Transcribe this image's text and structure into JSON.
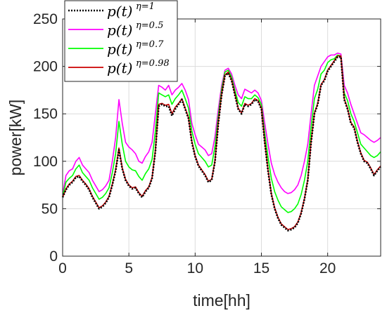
{
  "chart_data": {
    "type": "line",
    "title": "",
    "xlabel": "time[hh]",
    "ylabel": "power[kW]",
    "xlim": [
      0,
      24
    ],
    "ylim": [
      0,
      250
    ],
    "xticks": [
      0,
      5,
      10,
      15,
      20
    ],
    "yticks": [
      0,
      50,
      100,
      150,
      200,
      250
    ],
    "grid": true,
    "legend": {
      "placement": "top-left",
      "entries": [
        {
          "base": "p(t)",
          "sup": "η=1"
        },
        {
          "base": "p(t)",
          "sup": "η=0.5"
        },
        {
          "base": "p(t)",
          "sup": "η=0.7"
        },
        {
          "base": "p(t)",
          "sup": "η=0.98"
        }
      ]
    },
    "x": [
      0,
      0.25,
      0.5,
      0.75,
      1,
      1.25,
      1.5,
      1.75,
      2,
      2.25,
      2.5,
      2.75,
      3,
      3.25,
      3.5,
      3.75,
      4,
      4.25,
      4.5,
      4.75,
      5,
      5.25,
      5.5,
      5.75,
      6,
      6.25,
      6.5,
      6.75,
      7,
      7.25,
      7.5,
      7.75,
      8,
      8.25,
      8.5,
      8.75,
      9,
      9.25,
      9.5,
      9.75,
      10,
      10.25,
      10.5,
      10.75,
      11,
      11.25,
      11.5,
      11.75,
      12,
      12.25,
      12.5,
      12.75,
      13,
      13.25,
      13.5,
      13.75,
      14,
      14.25,
      14.5,
      14.75,
      15,
      15.25,
      15.5,
      15.75,
      16,
      16.25,
      16.5,
      16.75,
      17,
      17.25,
      17.5,
      17.75,
      18,
      18.25,
      18.5,
      18.75,
      19,
      19.25,
      19.5,
      19.75,
      20,
      20.25,
      20.5,
      20.75,
      21,
      21.25,
      21.5,
      21.75,
      22,
      22.25,
      22.5,
      22.75,
      23,
      23.25,
      23.5,
      23.75,
      24
    ],
    "series": [
      {
        "legend_index": 0,
        "color": "#000000",
        "dash": "2,2",
        "values": [
          62,
          70,
          75,
          78,
          83,
          84,
          79,
          75,
          70,
          62,
          56,
          50,
          52,
          56,
          62,
          75,
          90,
          112,
          92,
          80,
          74,
          71,
          72,
          66,
          62,
          68,
          72,
          82,
          110,
          158,
          160,
          158,
          158,
          148,
          155,
          160,
          165,
          155,
          145,
          120,
          105,
          95,
          90,
          85,
          78,
          80,
          100,
          140,
          170,
          190,
          193,
          185,
          170,
          155,
          150,
          160,
          158,
          160,
          165,
          163,
          155,
          120,
          90,
          65,
          50,
          40,
          33,
          30,
          27,
          28,
          30,
          35,
          45,
          60,
          80,
          120,
          150,
          160,
          180,
          185,
          195,
          200,
          205,
          210,
          210,
          165,
          155,
          140,
          135,
          120,
          108,
          100,
          98,
          92,
          85,
          90,
          94
        ]
      },
      {
        "legend_index": 1,
        "color": "#ff00ff",
        "dash": "",
        "values": [
          65,
          85,
          90,
          92,
          100,
          104,
          96,
          92,
          88,
          80,
          74,
          68,
          70,
          74,
          80,
          100,
          125,
          165,
          140,
          120,
          115,
          112,
          108,
          100,
          98,
          105,
          110,
          120,
          150,
          180,
          178,
          175,
          180,
          170,
          175,
          178,
          182,
          175,
          165,
          140,
          128,
          118,
          115,
          112,
          106,
          108,
          126,
          155,
          180,
          196,
          198,
          192,
          180,
          170,
          166,
          176,
          174,
          172,
          175,
          172,
          164,
          140,
          118,
          98,
          86,
          78,
          72,
          68,
          66,
          67,
          70,
          75,
          85,
          100,
          118,
          150,
          180,
          190,
          200,
          205,
          210,
          212,
          212,
          214,
          213,
          180,
          172,
          160,
          150,
          140,
          130,
          128,
          125,
          122,
          120,
          122,
          125
        ]
      },
      {
        "legend_index": 2,
        "color": "#00ff00",
        "dash": "",
        "values": [
          63,
          78,
          82,
          85,
          92,
          96,
          88,
          84,
          80,
          72,
          66,
          60,
          62,
          66,
          72,
          88,
          108,
          142,
          118,
          100,
          94,
          91,
          90,
          84,
          80,
          87,
          92,
          102,
          132,
          172,
          170,
          168,
          170,
          160,
          166,
          170,
          175,
          166,
          156,
          132,
          118,
          108,
          104,
          100,
          94,
          96,
          116,
          148,
          176,
          194,
          196,
          189,
          175,
          162,
          158,
          168,
          166,
          166,
          170,
          167,
          160,
          130,
          104,
          82,
          68,
          59,
          52,
          49,
          46,
          47,
          50,
          55,
          65,
          80,
          100,
          136,
          166,
          176,
          192,
          196,
          204,
          207,
          208,
          212,
          211,
          172,
          164,
          150,
          142,
          130,
          118,
          114,
          110,
          106,
          104,
          106,
          110
        ]
      },
      {
        "legend_index": 3,
        "color": "#cc0000",
        "dash": "",
        "values": [
          62,
          71,
          76,
          79,
          84,
          85,
          80,
          76,
          71,
          63,
          57,
          51,
          53,
          57,
          63,
          76,
          91,
          114,
          93,
          81,
          75,
          72,
          73,
          67,
          63,
          69,
          73,
          83,
          112,
          160,
          161,
          159,
          160,
          150,
          157,
          161,
          166,
          156,
          146,
          121,
          106,
          96,
          91,
          86,
          79,
          81,
          101,
          141,
          171,
          191,
          194,
          186,
          171,
          156,
          151,
          161,
          159,
          161,
          166,
          164,
          156,
          121,
          91,
          66,
          51,
          41,
          34,
          31,
          28,
          29,
          31,
          36,
          46,
          61,
          81,
          121,
          151,
          161,
          181,
          186,
          196,
          201,
          206,
          211,
          211,
          166,
          156,
          141,
          136,
          121,
          109,
          101,
          99,
          93,
          86,
          91,
          95
        ]
      }
    ]
  }
}
